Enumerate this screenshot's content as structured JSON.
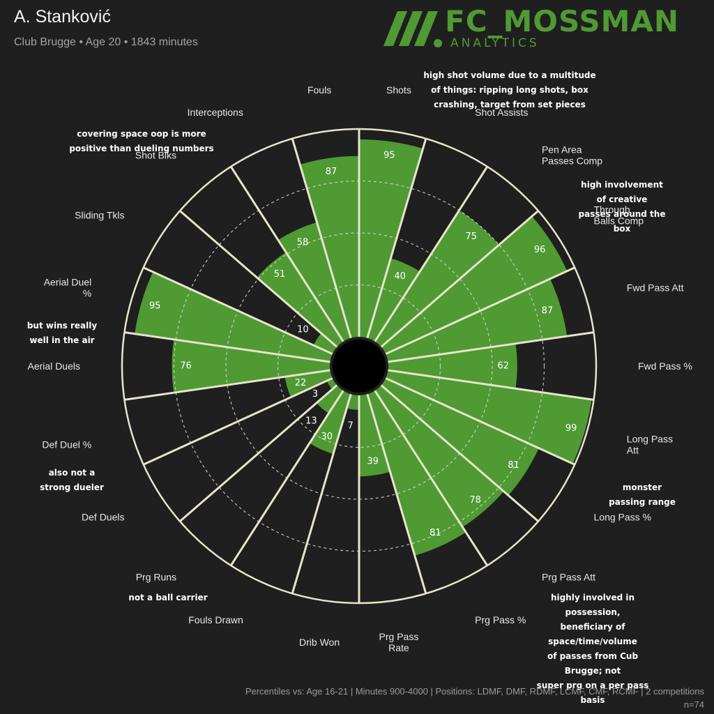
{
  "header": {
    "name": "A. Stanković",
    "subtitle": "Club Brugge • Age 20 • 1843 minutes"
  },
  "logo": {
    "word": "FC_MOSSMAN",
    "sub": "ANALYTICS"
  },
  "footer": {
    "note": "Percentiles vs: Age 16-21 | Minutes 900-4000 | Positions: LDMF, DMF, RDMF, LCMF, CMF, RCMF | 2 competitions",
    "n": "n=74"
  },
  "colors": {
    "background": "#1f1f1f",
    "bar": "#4f9a33",
    "grid": "#e8e4cc",
    "text": "#e8e8e8"
  },
  "annotations": [
    "high shot volume due to a multitude\nof things: ripping long shots, box\ncrashing, target from set pieces",
    "high involvement of creative\npasses around the box",
    "monster passing range",
    "highly involved in possession,\nbeneficiary of space/time/volume\nof passes from Cub Brugge; not\nsuper prg on a per pass basis",
    "not a ball carrier",
    "also not a\nstrong dueler",
    "but wins really\nwell in the air",
    "covering space oop is more\npositive than dueling numbers"
  ],
  "chart_data": {
    "type": "radar-bar",
    "axis_range": [
      0,
      100
    ],
    "rings": [
      25,
      50,
      75
    ],
    "categories": [
      "Shots",
      "Shot Assists",
      "Pen Area\nPasses Comp",
      "Through\nBalls Comp",
      "Fwd Pass Att",
      "Fwd Pass %",
      "Long Pass\nAtt",
      "Long Pass %",
      "Prg Pass Att",
      "Prg Pass %",
      "Prg Pass\nRate",
      "Drib Won",
      "Fouls Drawn",
      "Prg Runs",
      "Def Duels",
      "Def Duel %",
      "Aerial Duels",
      "Aerial Duel\n%",
      "Sliding Tkls",
      "Shot Blks",
      "Interceptions",
      "Fouls"
    ],
    "values": [
      95,
      40,
      75,
      96,
      87,
      62,
      99,
      81,
      78,
      81,
      39,
      7,
      30,
      13,
      3,
      22,
      76,
      95,
      10,
      51,
      58,
      87
    ]
  }
}
